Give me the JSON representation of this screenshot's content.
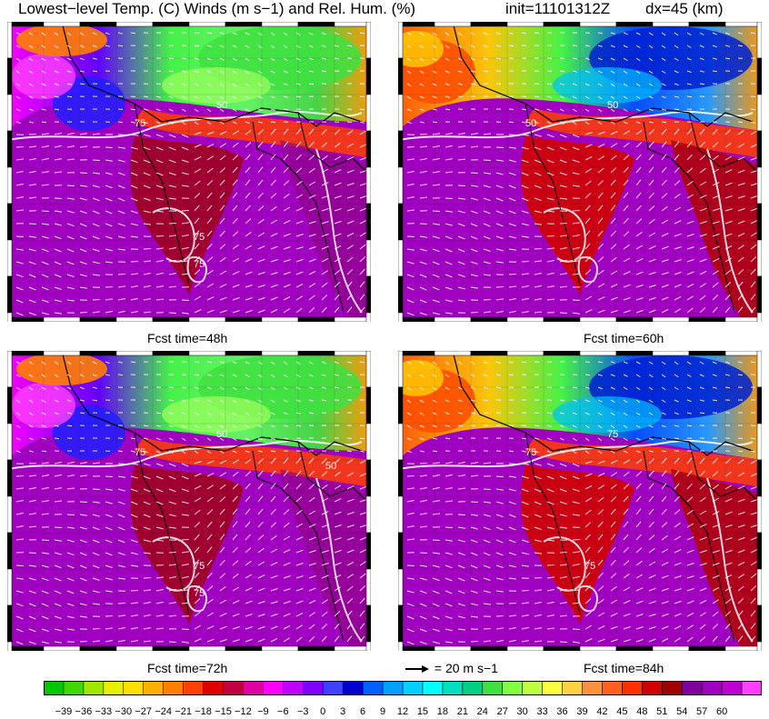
{
  "title": {
    "main": "Lowest−level Temp. (C) Winds (m s−1) and Rel. Hum. (%)",
    "init": "init=11101312Z",
    "dx": "dx=45 (km)"
  },
  "panels": [
    {
      "id": "p1",
      "fcst_label": "Fcst time=48h",
      "contour_labels": [
        "75",
        "50",
        "75",
        "75"
      ]
    },
    {
      "id": "p2",
      "fcst_label": "Fcst time=60h",
      "contour_labels": [
        "50",
        "50"
      ]
    },
    {
      "id": "p3",
      "fcst_label": "Fcst time=72h",
      "contour_labels": [
        "75",
        "50",
        "75",
        "75",
        "50"
      ]
    },
    {
      "id": "p4",
      "fcst_label": "Fcst time=84h",
      "contour_labels": [
        "75",
        "75",
        "75"
      ]
    }
  ],
  "vector_reference": {
    "label": "= 20 m s−1"
  },
  "colorbar": {
    "ticks": [
      "−39",
      "−36",
      "−33",
      "−30",
      "−27",
      "−24",
      "−21",
      "−18",
      "−15",
      "−12",
      "−9",
      "−6",
      "−3",
      "0",
      "3",
      "6",
      "9",
      "12",
      "15",
      "18",
      "21",
      "24",
      "27",
      "30",
      "33",
      "36",
      "39",
      "42",
      "45",
      "48",
      "51",
      "54",
      "57",
      "60"
    ],
    "colors": [
      "#00c800",
      "#40d800",
      "#a0e800",
      "#e6f000",
      "#ffe000",
      "#ffb000",
      "#ff8000",
      "#ff4000",
      "#e00000",
      "#c00040",
      "#e000a0",
      "#ff00ff",
      "#c000ff",
      "#8000ff",
      "#4040ff",
      "#0000d0",
      "#0060ff",
      "#00a0ff",
      "#00d0ff",
      "#00ffff",
      "#00e0c0",
      "#00d080",
      "#40e040",
      "#80ff40",
      "#c0ff40",
      "#ffff40",
      "#ffd040",
      "#ff9040",
      "#ff6020",
      "#ff3000",
      "#d00000",
      "#a00000",
      "#8000a0",
      "#a000c0",
      "#c000d0",
      "#ff40ff"
    ],
    "note": "temperature / relative humidity color scale"
  }
}
